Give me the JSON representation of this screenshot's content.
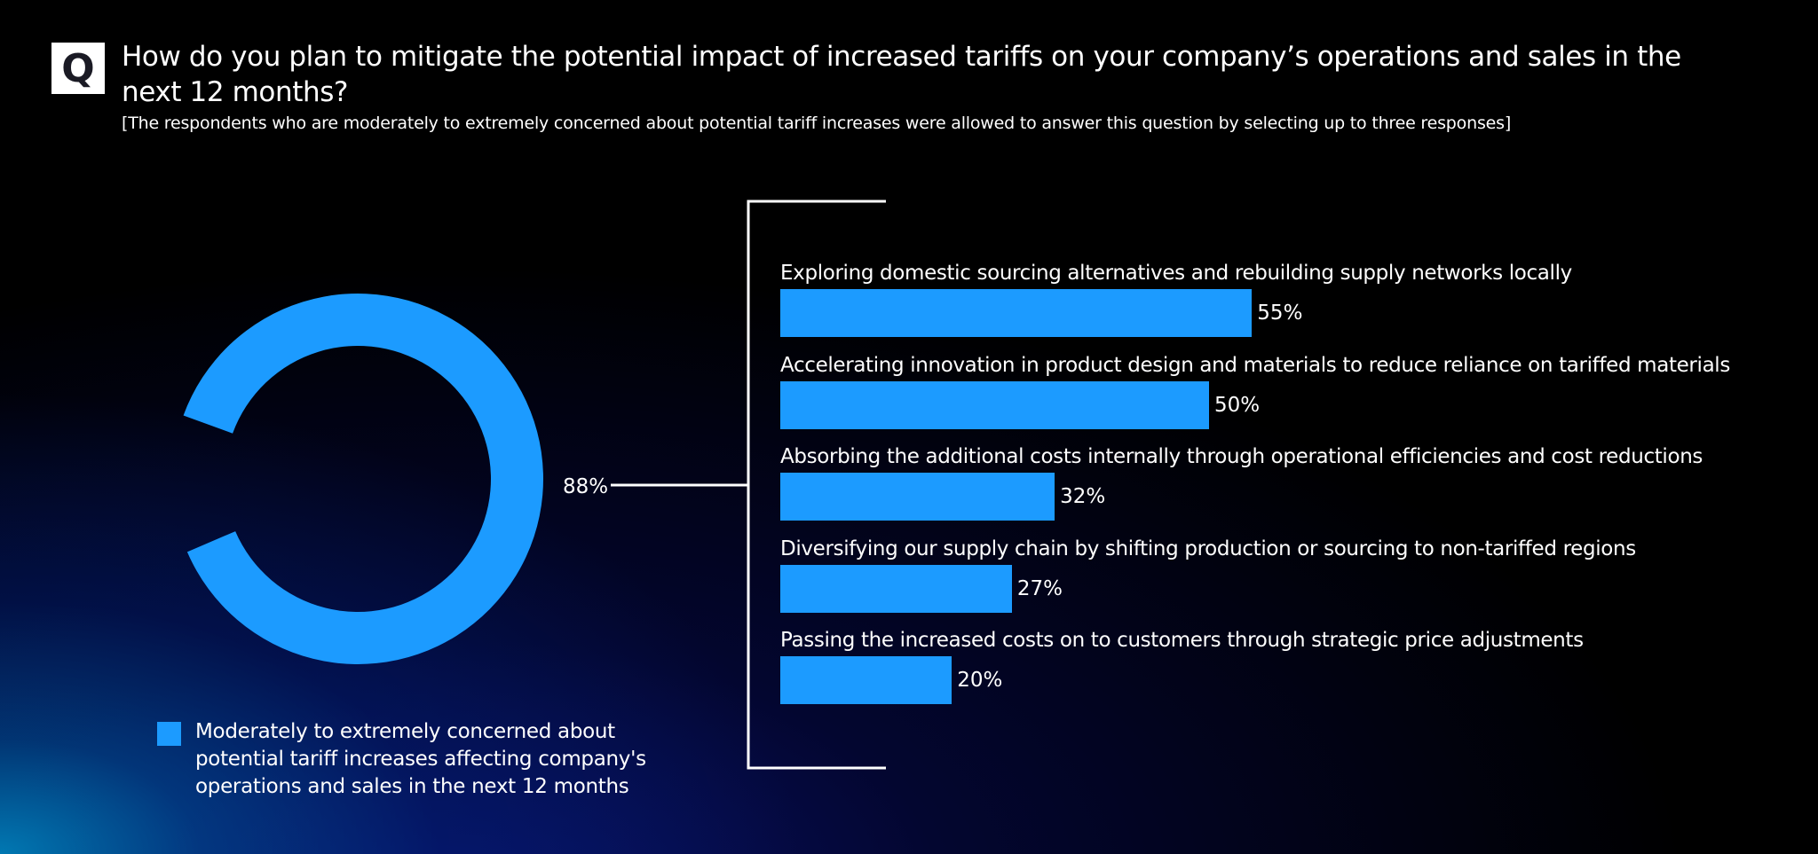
{
  "header": {
    "badge": "Q",
    "title": "How do you plan to mitigate the potential impact of increased tariffs on your company’s operations and sales in the next 12 months?",
    "subtitle": "[The respondents who are moderately to extremely concerned about potential tariff increases were allowed to answer this question by selecting up to three responses]"
  },
  "colors": {
    "accent": "#1c9bff",
    "text": "#ffffff",
    "background": "#000000"
  },
  "chart_data": [
    {
      "type": "pie",
      "variant": "donut",
      "title": "",
      "value": 88,
      "value_label": "88%",
      "legend": [
        {
          "label": "Moderately to extremely concerned about potential tariff increases affecting company's operations and sales in the next 12 months",
          "color": "#1c9bff"
        }
      ],
      "legend_placement": "bottom-left"
    },
    {
      "type": "bar",
      "orientation": "horizontal",
      "title": "",
      "xlabel": "",
      "ylabel": "",
      "xlim": [
        0,
        100
      ],
      "grid": false,
      "categories": [
        "Exploring domestic sourcing alternatives and rebuilding supply networks locally",
        "Accelerating innovation in product design and materials to reduce reliance on tariffed materials",
        "Absorbing the additional costs internally through operational efficiencies and cost reductions",
        "Diversifying our supply chain by shifting production or sourcing to non-tariffed regions",
        "Passing the increased costs on to customers through strategic price adjustments"
      ],
      "values": [
        55,
        50,
        32,
        27,
        20
      ],
      "value_labels": [
        "55%",
        "50%",
        "32%",
        "27%",
        "20%"
      ],
      "unit": "%"
    }
  ]
}
